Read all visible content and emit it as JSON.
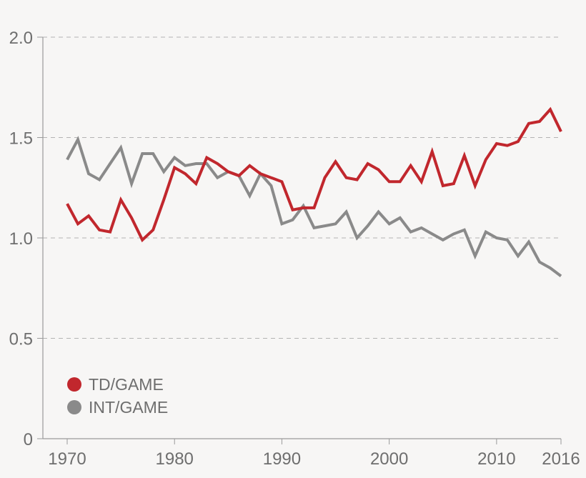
{
  "chart_data": {
    "type": "line",
    "title": "",
    "xlabel": "",
    "ylabel": "",
    "xlim": [
      1970,
      2016
    ],
    "ylim": [
      0,
      2.0
    ],
    "grid": "horizontal dashed",
    "y_ticks": [
      {
        "value": 0,
        "label": "0"
      },
      {
        "value": 0.5,
        "label": "0.5"
      },
      {
        "value": 1.0,
        "label": "1.0"
      },
      {
        "value": 1.5,
        "label": "1.5"
      },
      {
        "value": 2.0,
        "label": "2.0"
      }
    ],
    "x_ticks": [
      {
        "value": 1970,
        "label": "1970"
      },
      {
        "value": 1980,
        "label": "1980"
      },
      {
        "value": 1990,
        "label": "1990"
      },
      {
        "value": 2000,
        "label": "2000"
      },
      {
        "value": 2010,
        "label": "2010"
      },
      {
        "value": 2016,
        "label": "2016"
      }
    ],
    "x": [
      1970,
      1971,
      1972,
      1973,
      1974,
      1975,
      1976,
      1977,
      1978,
      1979,
      1980,
      1981,
      1982,
      1983,
      1984,
      1985,
      1986,
      1987,
      1988,
      1989,
      1990,
      1991,
      1992,
      1993,
      1994,
      1995,
      1996,
      1997,
      1998,
      1999,
      2000,
      2001,
      2002,
      2003,
      2004,
      2005,
      2006,
      2007,
      2008,
      2009,
      2010,
      2011,
      2012,
      2013,
      2014,
      2015,
      2016
    ],
    "series": [
      {
        "name": "TD/GAME",
        "color": "#c1272d",
        "values": [
          1.17,
          1.07,
          1.11,
          1.04,
          1.03,
          1.19,
          1.1,
          0.99,
          1.04,
          1.19,
          1.35,
          1.32,
          1.27,
          1.4,
          1.37,
          1.33,
          1.31,
          1.36,
          1.32,
          1.3,
          1.28,
          1.14,
          1.15,
          1.15,
          1.3,
          1.38,
          1.3,
          1.29,
          1.37,
          1.34,
          1.28,
          1.28,
          1.36,
          1.28,
          1.43,
          1.26,
          1.27,
          1.41,
          1.26,
          1.39,
          1.47,
          1.46,
          1.48,
          1.57,
          1.58,
          1.64,
          1.53
        ]
      },
      {
        "name": "INT/GAME",
        "color": "#8a8a8a",
        "values": [
          1.39,
          1.49,
          1.32,
          1.29,
          1.37,
          1.45,
          1.27,
          1.42,
          1.42,
          1.33,
          1.4,
          1.36,
          1.37,
          1.37,
          1.3,
          1.33,
          1.31,
          1.21,
          1.32,
          1.26,
          1.07,
          1.09,
          1.16,
          1.05,
          1.06,
          1.07,
          1.13,
          1.0,
          1.06,
          1.13,
          1.07,
          1.1,
          1.03,
          1.05,
          1.02,
          0.99,
          1.02,
          1.04,
          0.91,
          1.03,
          1.0,
          0.99,
          0.91,
          0.98,
          0.88,
          0.85,
          0.81
        ]
      }
    ],
    "legend": {
      "position": "bottom-left",
      "entries": [
        "TD/GAME",
        "INT/GAME"
      ]
    }
  }
}
